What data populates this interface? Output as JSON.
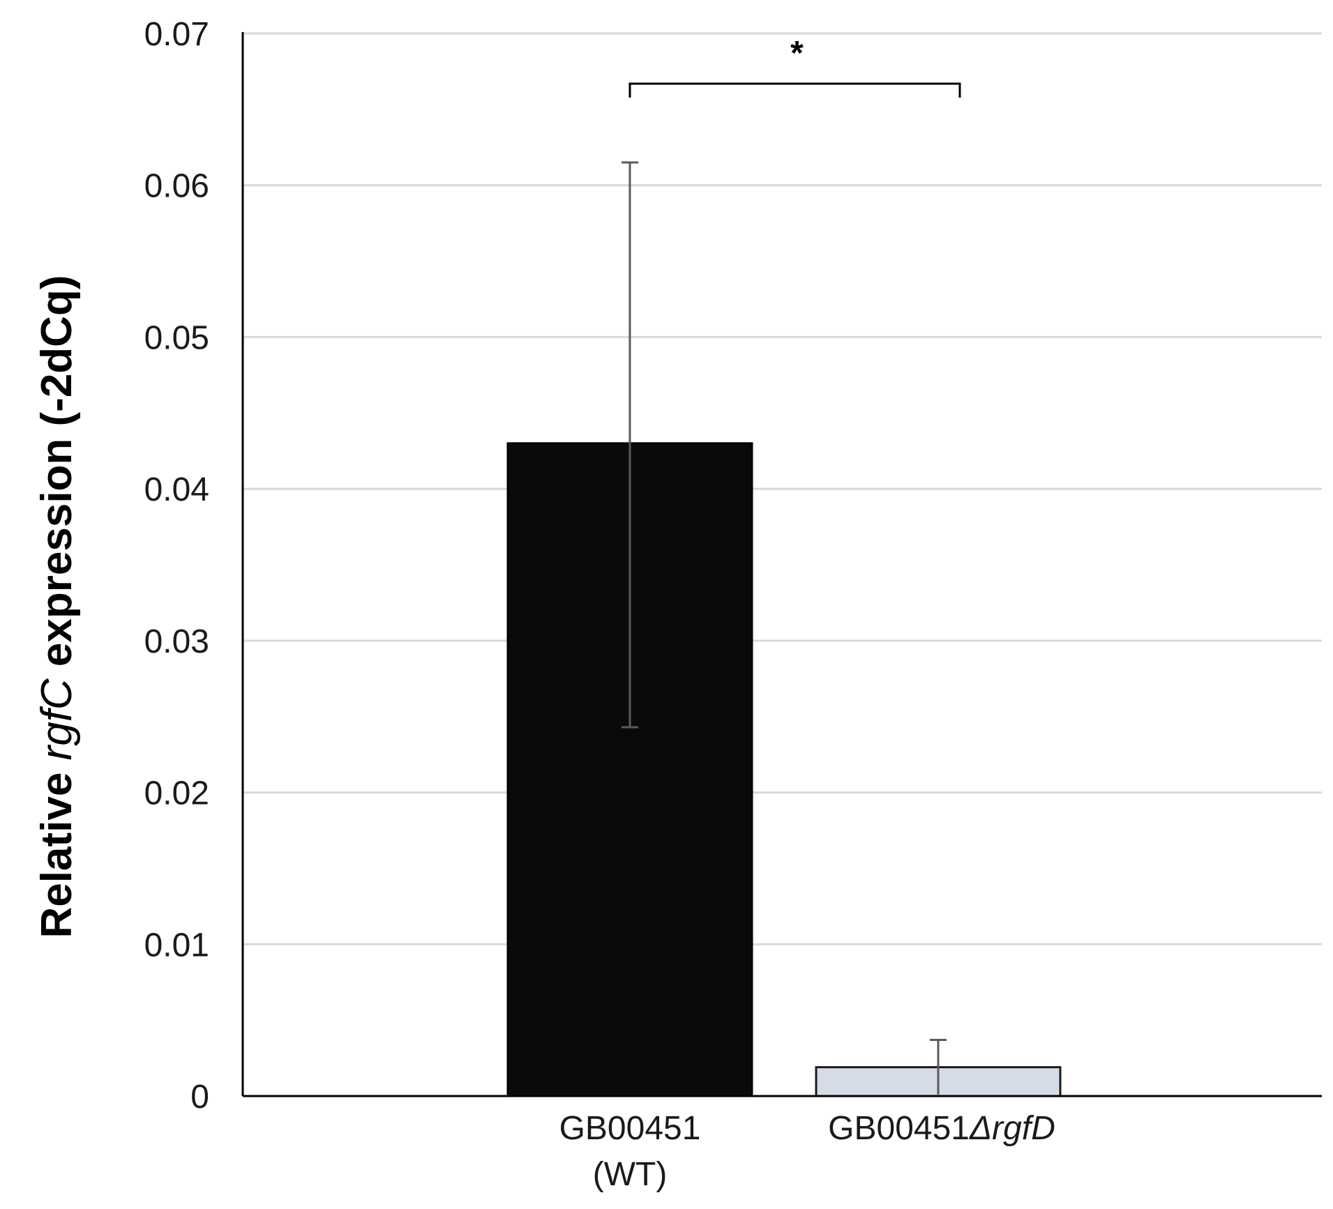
{
  "chart_data": {
    "type": "bar",
    "categories": [
      {
        "line1": "GB00451",
        "line2": "(WT)",
        "line1_italic_suffix": ""
      },
      {
        "line1": "GB00451",
        "line2": "",
        "line1_italic_suffix": "ΔrgfD"
      }
    ],
    "values": [
      0.043,
      0.0019
    ],
    "error_upper": [
      0.0615,
      0.0037
    ],
    "error_lower": [
      0.0243,
      0.0001
    ],
    "bar_colors": [
      "#0a0a0c",
      "#d5dce8"
    ],
    "bar_edge_colors": [
      "#000000",
      "#1a1a1a"
    ],
    "error_color": "#5a5a5a",
    "grid_color": "#d9d9d9",
    "ylim": [
      0,
      0.07
    ],
    "yticks": [
      "0",
      "0.01",
      "0.02",
      "0.03",
      "0.04",
      "0.05",
      "0.06",
      "0.07"
    ],
    "ylabel": {
      "prefix": "Relative ",
      "italic": "rgfC",
      "suffix": " expression (-2dCq)"
    },
    "significance": {
      "label": "*",
      "between": [
        0,
        1
      ]
    },
    "grid": true,
    "title": ""
  }
}
